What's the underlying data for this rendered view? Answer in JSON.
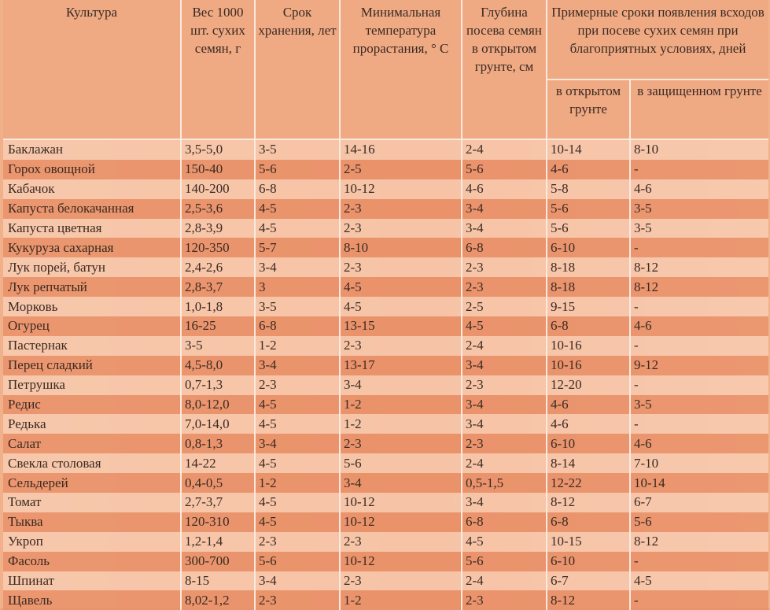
{
  "table": {
    "headers": {
      "crop": "Культура",
      "weight": "Вес 1000 шт. сухих семян, г",
      "storage": "Срок хранения, лет",
      "min_temp": "Минимальная температура прорастания, ° С",
      "depth": "Глубина посева семян в открытом грунте, см",
      "emergence": "Примерные сроки появления всходов при посеве сухих семян при благоприятных условиях, дней",
      "open_ground": "в открытом грунте",
      "protected_ground": "в защищенном грунте"
    },
    "rows": [
      [
        "Баклажан",
        "3,5-5,0",
        "3-5",
        "14-16",
        "2-4",
        "10-14",
        "8-10"
      ],
      [
        "Горох овощной",
        "150-40",
        "5-6",
        "2-5",
        "5-6",
        "4-6",
        "-"
      ],
      [
        "Кабачок",
        "140-200",
        "6-8",
        "10-12",
        "4-6",
        "5-8",
        "4-6"
      ],
      [
        "Капуста белокачанная",
        "2,5-3,6",
        "4-5",
        "2-3",
        "3-4",
        "5-6",
        "3-5"
      ],
      [
        "Капуста цветная",
        "2,8-3,9",
        "4-5",
        "2-3",
        "3-4",
        "5-6",
        "3-5"
      ],
      [
        "Кукуруза сахарная",
        "120-350",
        "5-7",
        "8-10",
        "6-8",
        "6-10",
        "-"
      ],
      [
        "Лук порей, батун",
        "2,4-2,6",
        "3-4",
        "2-3",
        "2-3",
        "8-18",
        "8-12"
      ],
      [
        "Лук репчатый",
        "2,8-3,7",
        "3",
        "4-5",
        "2-3",
        "8-18",
        "8-12"
      ],
      [
        "Морковь",
        "1,0-1,8",
        "3-5",
        "4-5",
        "2-5",
        "9-15",
        "-"
      ],
      [
        "Огурец",
        "16-25",
        "6-8",
        "13-15",
        "4-5",
        "6-8",
        "4-6"
      ],
      [
        "Пастернак",
        "3-5",
        "1-2",
        "2-3",
        "2-4",
        "10-16",
        "-"
      ],
      [
        "Перец сладкий",
        "4,5-8,0",
        "3-4",
        "13-17",
        "3-4",
        "10-16",
        "9-12"
      ],
      [
        "Петрушка",
        "0,7-1,3",
        "2-3",
        "3-4",
        "2-3",
        "12-20",
        "-"
      ],
      [
        "Редис",
        "8,0-12,0",
        "4-5",
        "1-2",
        "3-4",
        "4-6",
        "3-5"
      ],
      [
        "Редька",
        "7,0-14,0",
        "4-5",
        "1-2",
        "3-4",
        "4-6",
        "-"
      ],
      [
        "Салат",
        "0,8-1,3",
        "3-4",
        "2-3",
        "2-3",
        "6-10",
        "4-6"
      ],
      [
        "Свекла столовая",
        "14-22",
        "4-5",
        "5-6",
        "2-4",
        "8-14",
        "7-10"
      ],
      [
        "Сельдерей",
        "0,4-0,5",
        "1-2",
        "3-4",
        "0,5-1,5",
        "12-22",
        "10-14"
      ],
      [
        "Томат",
        "2,7-3,7",
        "4-5",
        "10-12",
        "3-4",
        "8-12",
        "6-7"
      ],
      [
        "Тыква",
        "120-310",
        "4-5",
        "10-12",
        "6-8",
        "6-8",
        "5-6"
      ],
      [
        "Укроп",
        "1,2-1,4",
        "2-3",
        "2-3",
        "4-5",
        "10-15",
        "8-12"
      ],
      [
        "Фасоль",
        "300-700",
        "5-6",
        "10-12",
        "5-6",
        "6-10",
        "-"
      ],
      [
        "Шпинат",
        "8-15",
        "3-4",
        "2-3",
        "2-4",
        "6-7",
        "4-5"
      ],
      [
        "Щавель",
        "8,02-1,2",
        "2-3",
        "1-2",
        "2-3",
        "8-12",
        "-"
      ]
    ]
  }
}
